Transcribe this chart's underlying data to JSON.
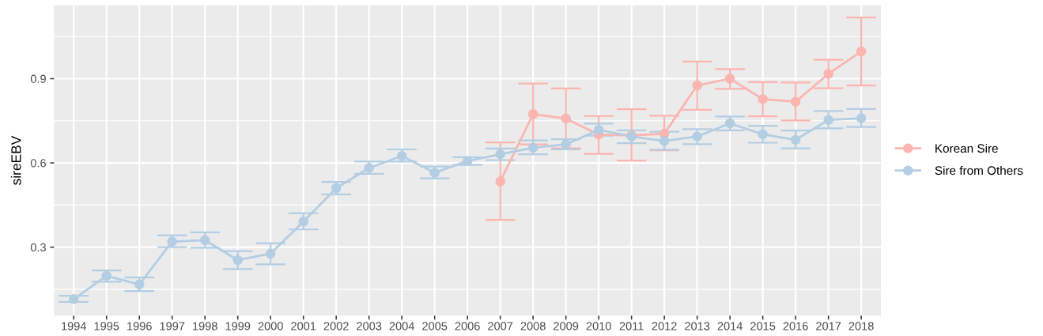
{
  "chart_data": {
    "type": "line",
    "ylabel": "sireEBV",
    "categories": [
      "1994",
      "1995",
      "1996",
      "1997",
      "1998",
      "1999",
      "2000",
      "2001",
      "2002",
      "2003",
      "2004",
      "2005",
      "2006",
      "2007",
      "2008",
      "2009",
      "2010",
      "2011",
      "2012",
      "2013",
      "2014",
      "2015",
      "2016",
      "2017",
      "2018"
    ],
    "series": [
      {
        "name": "Korean Sire",
        "color": "#fbb4ae",
        "values": [
          null,
          null,
          null,
          null,
          null,
          null,
          null,
          null,
          null,
          null,
          null,
          null,
          null,
          0.534,
          0.774,
          0.758,
          0.701,
          0.698,
          0.704,
          0.876,
          0.9,
          0.827,
          0.818,
          0.917,
          0.997
        ],
        "errors": [
          null,
          null,
          null,
          null,
          null,
          null,
          null,
          null,
          null,
          null,
          null,
          null,
          null,
          [
            0.397,
            0.673
          ],
          [
            0.666,
            0.883
          ],
          [
            0.652,
            0.865
          ],
          [
            0.632,
            0.767
          ],
          [
            0.608,
            0.791
          ],
          [
            0.645,
            0.768
          ],
          [
            0.789,
            0.961
          ],
          [
            0.864,
            0.934
          ],
          [
            0.766,
            0.888
          ],
          [
            0.751,
            0.886
          ],
          [
            0.866,
            0.967
          ],
          [
            0.876,
            1.118
          ]
        ]
      },
      {
        "name": "Sire from Others",
        "color": "#b3cde3",
        "values": [
          0.115,
          0.198,
          0.167,
          0.32,
          0.325,
          0.254,
          0.277,
          0.391,
          0.51,
          0.582,
          0.625,
          0.565,
          0.607,
          0.631,
          0.654,
          0.666,
          0.718,
          0.694,
          0.678,
          0.694,
          0.741,
          0.702,
          0.682,
          0.753,
          0.759
        ],
        "errors": [
          [
            0.105,
            0.127
          ],
          [
            0.177,
            0.217
          ],
          [
            0.144,
            0.192
          ],
          [
            0.3,
            0.342
          ],
          [
            0.298,
            0.353
          ],
          [
            0.222,
            0.286
          ],
          [
            0.239,
            0.314
          ],
          [
            0.363,
            0.421
          ],
          [
            0.488,
            0.532
          ],
          [
            0.561,
            0.605
          ],
          [
            0.605,
            0.648
          ],
          [
            0.545,
            0.587
          ],
          [
            0.593,
            0.62
          ],
          [
            0.61,
            0.651
          ],
          [
            0.631,
            0.68
          ],
          [
            0.648,
            0.684
          ],
          [
            0.697,
            0.74
          ],
          [
            0.67,
            0.716
          ],
          [
            0.647,
            0.711
          ],
          [
            0.667,
            0.72
          ],
          [
            0.716,
            0.765
          ],
          [
            0.672,
            0.732
          ],
          [
            0.652,
            0.715
          ],
          [
            0.723,
            0.785
          ],
          [
            0.728,
            0.792
          ]
        ]
      }
    ],
    "ylim": [
      0.056,
      1.161
    ],
    "yticks": [
      0.3,
      0.6,
      0.9
    ],
    "grid": true,
    "legend": "right",
    "marker": "circle",
    "line_style": "solid"
  }
}
